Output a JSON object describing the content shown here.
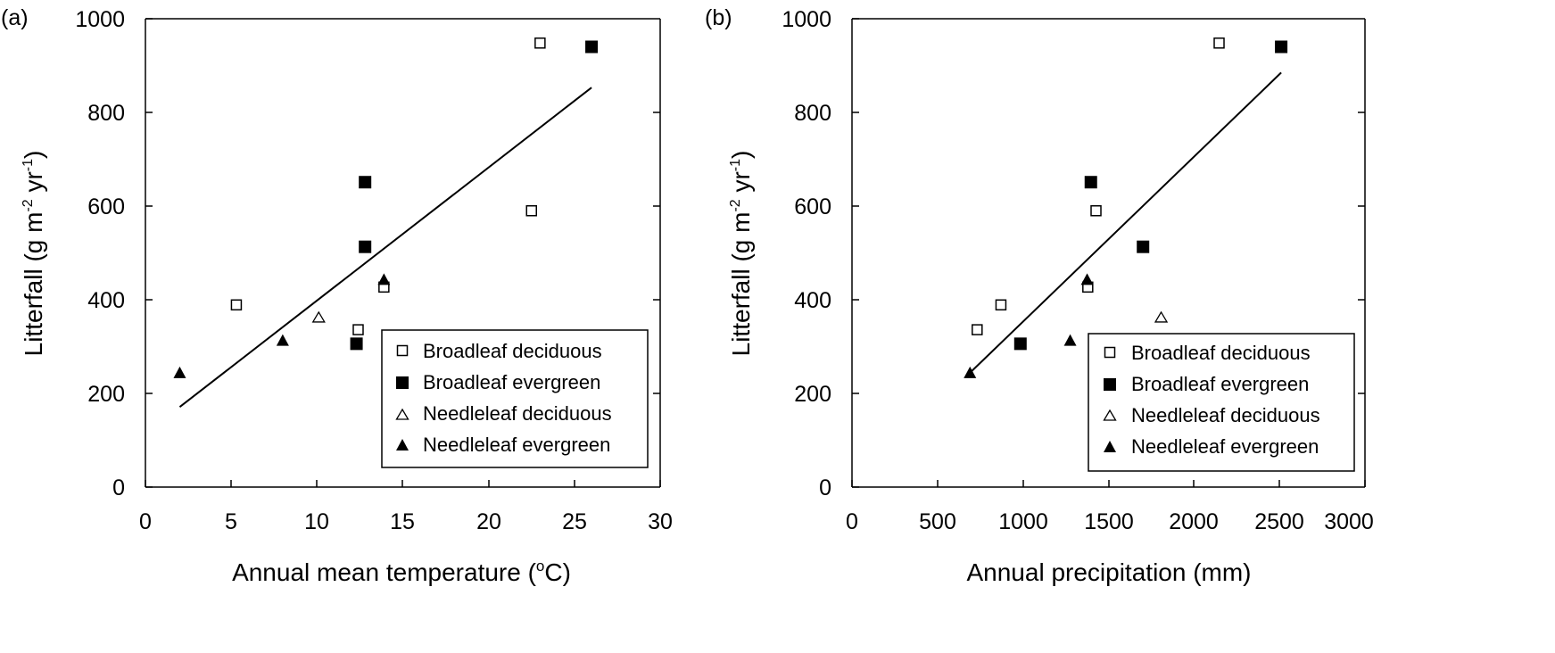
{
  "chart_data": [
    {
      "type": "scatter",
      "panel_label": "(a)",
      "xlabel_main": "Annual mean temperature (",
      "xlabel_deg": "o",
      "xlabel_end": "C)",
      "ylabel_main": "Litterfall (g m",
      "ylabel_sup1": "-2",
      "ylabel_mid": " yr",
      "ylabel_sup2": "-1",
      "ylabel_end": ")",
      "xlim": [
        0,
        30
      ],
      "ylim": [
        0,
        1000
      ],
      "xticks": [
        "0",
        "5",
        "10",
        "15",
        "20",
        "25",
        "30"
      ],
      "yticks": [
        "0",
        "200",
        "400",
        "600",
        "800",
        "1000"
      ],
      "legend_position": "bottom-right",
      "series": [
        {
          "name": "Broadleaf deciduous",
          "marker": "square-open",
          "points": [
            [
              5.3,
              389
            ],
            [
              12.4,
              336
            ],
            [
              13.9,
              427
            ],
            [
              22.5,
              590
            ],
            [
              23.0,
              948
            ]
          ]
        },
        {
          "name": "Broadleaf evergreen",
          "marker": "square-filled",
          "points": [
            [
              12.3,
              306
            ],
            [
              12.8,
              513
            ],
            [
              12.8,
              651
            ],
            [
              26.0,
              940
            ]
          ]
        },
        {
          "name": "Needleleaf deciduous",
          "marker": "triangle-open",
          "points": [
            [
              10.1,
              362
            ]
          ]
        },
        {
          "name": "Needleleaf evergreen",
          "marker": "triangle-filled",
          "points": [
            [
              2.0,
              244
            ],
            [
              8.0,
              313
            ],
            [
              13.9,
              443
            ]
          ]
        }
      ],
      "trendline": [
        [
          2.0,
          171
        ],
        [
          26.0,
          853
        ]
      ]
    },
    {
      "type": "scatter",
      "panel_label": "(b)",
      "xlabel": "Annual precipitation (mm)",
      "ylabel_main": "Litterfall (g m",
      "ylabel_sup1": "-2",
      "ylabel_mid": " yr",
      "ylabel_sup2": "-1",
      "ylabel_end": ")",
      "xlim": [
        0,
        3000
      ],
      "ylim": [
        0,
        1000
      ],
      "xticks": [
        "0",
        "500",
        "1000",
        "1500",
        "2000",
        "2500",
        "3000"
      ],
      "yticks": [
        "0",
        "200",
        "400",
        "600",
        "800",
        "1000"
      ],
      "legend_position": "bottom-right",
      "series": [
        {
          "name": "Broadleaf deciduous",
          "marker": "square-open",
          "points": [
            [
              732,
              336
            ],
            [
              871,
              389
            ],
            [
              1379,
              427
            ],
            [
              1427,
              590
            ],
            [
              2147,
              948
            ]
          ]
        },
        {
          "name": "Broadleaf evergreen",
          "marker": "square-filled",
          "points": [
            [
              985,
              306
            ],
            [
              1397,
              651
            ],
            [
              1702,
              513
            ],
            [
              2510,
              940
            ]
          ]
        },
        {
          "name": "Needleleaf deciduous",
          "marker": "triangle-open",
          "points": [
            [
              1808,
              362
            ]
          ]
        },
        {
          "name": "Needleleaf evergreen",
          "marker": "triangle-filled",
          "points": [
            [
              690,
              244
            ],
            [
              1276,
              313
            ],
            [
              1375,
              443
            ]
          ]
        }
      ],
      "trendline": [
        [
          690,
          244
        ],
        [
          2510,
          885
        ]
      ]
    }
  ]
}
